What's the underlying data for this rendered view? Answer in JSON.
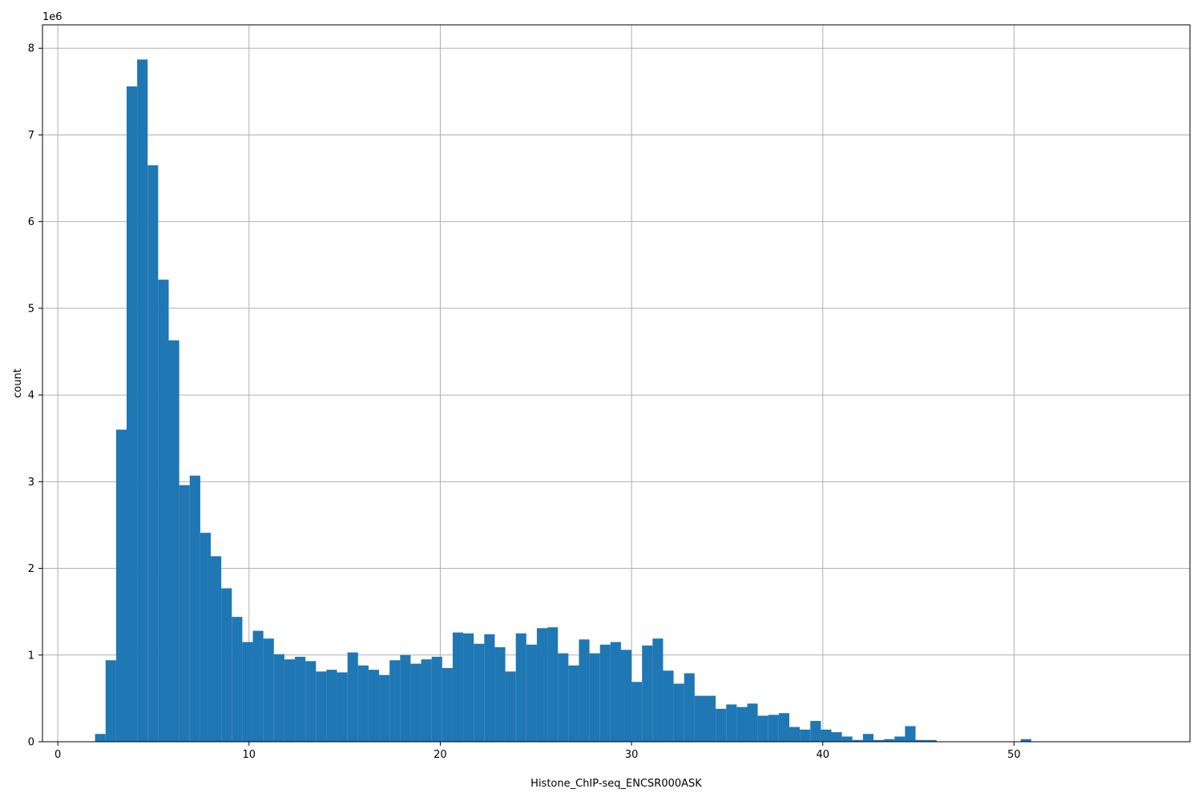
{
  "chart_data": {
    "type": "histogram",
    "xlabel": "Histone_ChIP-seq_ENCSR000ASK",
    "ylabel": "count",
    "y_multiplier_label": "1e6",
    "xlim": [
      -0.8,
      59.2
    ],
    "ylim": [
      0,
      8.27
    ],
    "y_scale": 1000000,
    "x_ticks": [
      0,
      10,
      20,
      30,
      40,
      50
    ],
    "y_ticks": [
      0,
      1,
      2,
      3,
      4,
      5,
      6,
      7,
      8
    ],
    "grid": true,
    "bar_color": "#1f77b4",
    "bin_start": 1.95,
    "bin_width": 0.55,
    "values_millions": [
      0.09,
      0.94,
      3.6,
      7.56,
      7.87,
      6.65,
      5.33,
      4.63,
      2.96,
      3.07,
      2.41,
      2.14,
      1.77,
      1.44,
      1.15,
      1.28,
      1.19,
      1.01,
      0.95,
      0.98,
      0.93,
      0.81,
      0.83,
      0.8,
      1.03,
      0.88,
      0.83,
      0.77,
      0.94,
      1.0,
      0.9,
      0.95,
      0.98,
      0.85,
      1.26,
      1.25,
      1.13,
      1.24,
      1.09,
      0.81,
      1.25,
      1.12,
      1.31,
      1.32,
      1.02,
      0.88,
      1.18,
      1.02,
      1.12,
      1.15,
      1.06,
      0.69,
      1.11,
      1.19,
      0.82,
      0.67,
      0.79,
      0.53,
      0.53,
      0.38,
      0.43,
      0.4,
      0.44,
      0.3,
      0.31,
      0.33,
      0.17,
      0.14,
      0.24,
      0.14,
      0.11,
      0.06,
      0.02,
      0.09,
      0.02,
      0.03,
      0.06,
      0.18,
      0.02,
      0.02,
      0.0,
      0.0,
      0.0,
      0.0,
      0.0,
      0.0,
      0.0,
      0.0,
      0.03
    ]
  }
}
